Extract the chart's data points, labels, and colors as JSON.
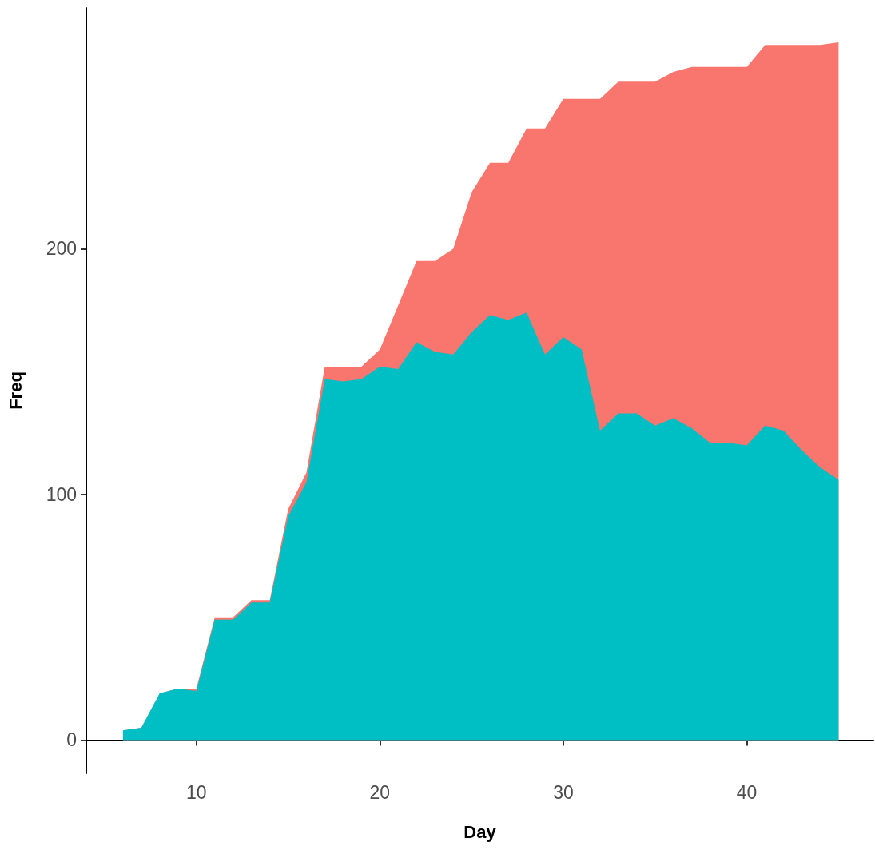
{
  "chart_data": {
    "type": "area",
    "stacked": true,
    "xlabel": "Day",
    "ylabel": "Freq",
    "x": [
      6,
      7,
      8,
      9,
      10,
      11,
      12,
      13,
      14,
      15,
      16,
      17,
      18,
      19,
      20,
      21,
      22,
      23,
      24,
      25,
      26,
      27,
      28,
      29,
      30,
      31,
      32,
      33,
      34,
      35,
      36,
      37,
      38,
      39,
      40,
      41,
      42,
      43,
      44,
      45
    ],
    "series": [
      {
        "color": "#00bfc4",
        "values": [
          4,
          5,
          19,
          21,
          20,
          49,
          49,
          56,
          56,
          91,
          105,
          147,
          146,
          147,
          152,
          151,
          162,
          158,
          157,
          166,
          173,
          171,
          174,
          157,
          164,
          159,
          126,
          133,
          133,
          128,
          131,
          127,
          121,
          121,
          120,
          128,
          126,
          118,
          111,
          106
        ]
      },
      {
        "color": "#f8766d",
        "values": [
          0,
          0,
          0,
          0,
          1,
          1,
          1,
          1,
          1,
          3,
          4,
          5,
          6,
          5,
          7,
          26,
          33,
          37,
          43,
          57,
          62,
          64,
          75,
          92,
          97,
          102,
          135,
          135,
          135,
          140,
          141,
          147,
          153,
          153,
          154,
          155,
          157,
          165,
          172,
          178
        ]
      }
    ],
    "xlim": [
      4,
      46.9
    ],
    "ylim": [
      -13.5,
      298
    ],
    "xticks": [
      10,
      20,
      30,
      40
    ],
    "yticks": [
      0,
      100,
      200
    ]
  }
}
